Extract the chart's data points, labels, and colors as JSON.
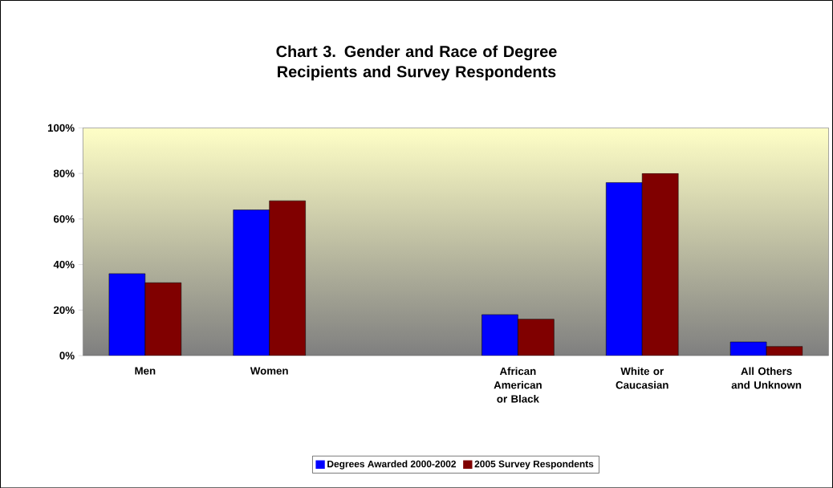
{
  "chart_data": {
    "type": "bar",
    "title": "Chart 3. Gender and Race of Degree Recipients and Survey Respondents",
    "categories": [
      "Men",
      "Women",
      null,
      "African American or Black",
      "White or Caucasian",
      "All Others and Unknown"
    ],
    "series": [
      {
        "name": "Degrees Awarded 2000-2002",
        "color": "#0000ff",
        "values": [
          36,
          64,
          null,
          18,
          76,
          6
        ]
      },
      {
        "name": "2005 Survey Respondents",
        "color": "#800000",
        "values": [
          32,
          68,
          null,
          16,
          80,
          4
        ]
      }
    ],
    "ylim": [
      0,
      100
    ],
    "yticks": [
      {
        "value": 0,
        "label": "0%"
      },
      {
        "value": 20,
        "label": "20%"
      },
      {
        "value": 40,
        "label": "40%"
      },
      {
        "value": 60,
        "label": "60%"
      },
      {
        "value": 80,
        "label": "80%"
      },
      {
        "value": 100,
        "label": "100%"
      }
    ],
    "legend": "bottom"
  }
}
